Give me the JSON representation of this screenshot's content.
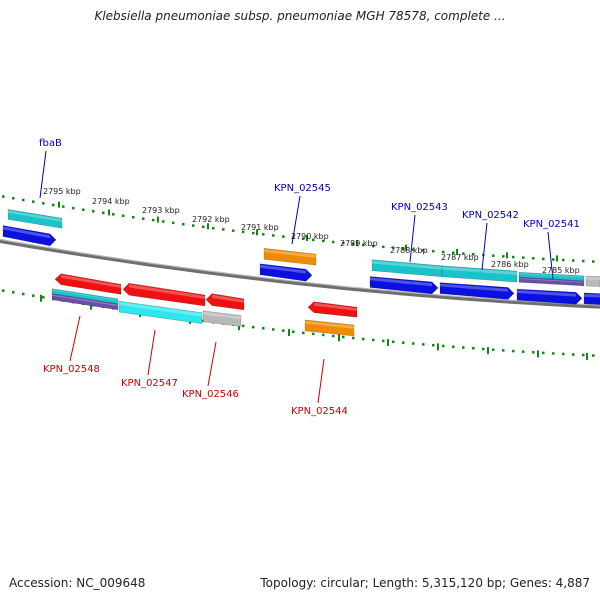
{
  "title": "Klebsiella pneumoniae subsp. pneumoniae MGH 78578, complete ...",
  "footer": {
    "accession": "Accession: NC_009648",
    "summary": "Topology: circular; Length: 5,315,120 bp; Genes: 4,887"
  },
  "colors": {
    "backbone": "#7a7a7a",
    "tick": "#118811",
    "forward_label": "#0000bb",
    "reverse_label": "#cc0000",
    "cds_blue": "#0a10e0",
    "gene_red": "#ee1111",
    "cyan": "#19c3c9",
    "bright_cyan": "#2ee6ee",
    "orange": "#f08a00",
    "grey": "#b8b8b8",
    "purple_stripe": "#6b4ea8"
  },
  "scale_labels": [
    "2795 kbp",
    "2794 kbp",
    "2793 kbp",
    "2792 kbp",
    "2791 kbp",
    "2790 kbp",
    "2789 kbp",
    "2788 kbp",
    "2787 kbp",
    "2786 kbp",
    "2785 kbp"
  ],
  "forward_genes": [
    "fbaB",
    "KPN_02545",
    "KPN_02543",
    "KPN_02542",
    "KPN_02541"
  ],
  "reverse_genes": [
    "KPN_02548",
    "KPN_02547",
    "KPN_02546",
    "KPN_02544"
  ]
}
